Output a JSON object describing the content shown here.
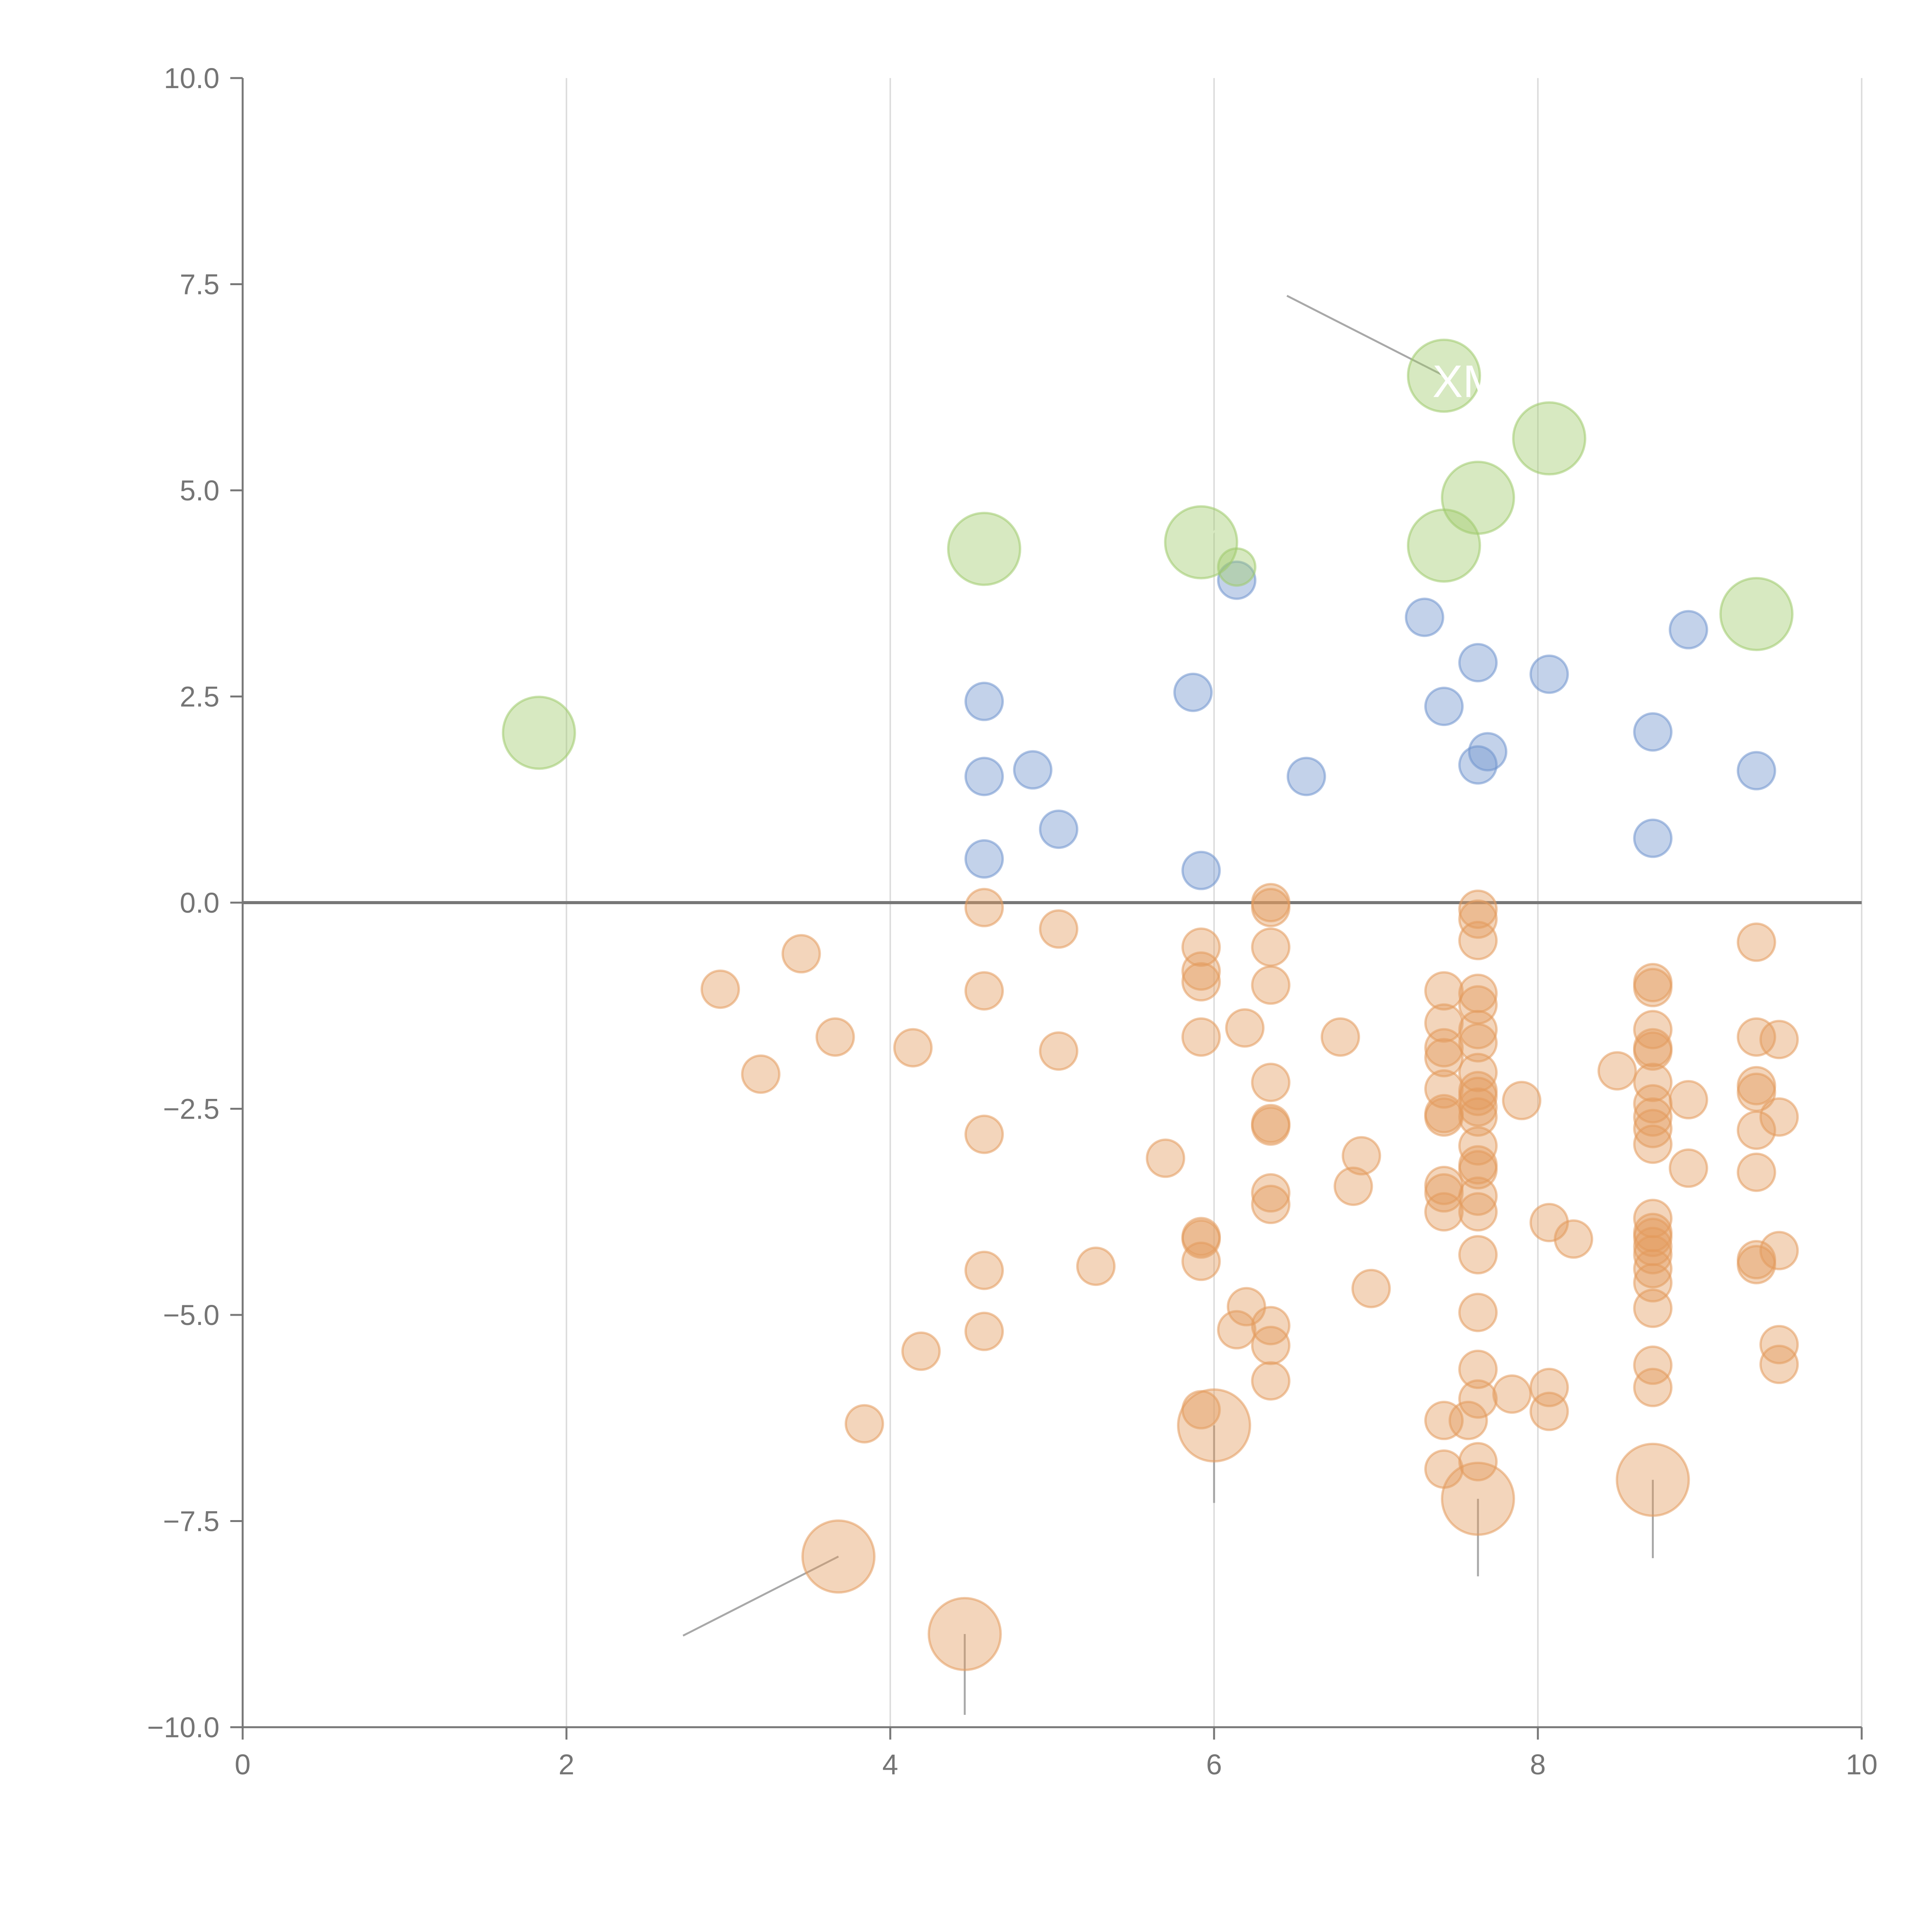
{
  "chart_data": {
    "type": "scatter",
    "title": "",
    "xlabel": "",
    "ylabel": "",
    "xlim": [
      0,
      10
    ],
    "ylim": [
      -10,
      10
    ],
    "x_ticks": [
      0,
      2,
      4,
      6,
      8,
      10
    ],
    "x_tick_labels": [
      "0",
      "2",
      "4",
      "6",
      "8",
      "10"
    ],
    "y_ticks": [
      10,
      7.5,
      5,
      2.5,
      0,
      -2.5,
      -5,
      -7.5,
      -10
    ],
    "y_tick_labels": [
      "10.0",
      "7.5",
      "5.0",
      "2.5",
      "0.0",
      "−2.5",
      "−5.0",
      "−7.5",
      "−10.0"
    ],
    "vertical_grid": true,
    "zero_line": true,
    "annotation_text": "XM",
    "colors": {
      "negative": "#e39a5c",
      "positive": "#6f94cd",
      "highlight": "#9fca6b",
      "axis": "#777777",
      "grid": "#dddddd",
      "tick_label": "#757575",
      "leader_dark": "#999999",
      "leader_light": "#ffffff"
    },
    "series": [
      {
        "name": "negative",
        "color": "#e39a5c",
        "size": "small",
        "points": [
          [
            2.95,
            -1.05
          ],
          [
            3.2,
            -2.08
          ],
          [
            3.45,
            -0.62
          ],
          [
            3.66,
            -1.63
          ],
          [
            3.84,
            -6.32
          ],
          [
            4.14,
            -1.76
          ],
          [
            4.19,
            -5.44
          ],
          [
            4.58,
            -0.06
          ],
          [
            4.58,
            -1.07
          ],
          [
            4.58,
            -2.81
          ],
          [
            4.58,
            -4.46
          ],
          [
            4.58,
            -5.2
          ],
          [
            5.04,
            -0.32
          ],
          [
            5.04,
            -1.8
          ],
          [
            5.27,
            -4.41
          ],
          [
            5.7,
            -3.1
          ],
          [
            5.92,
            -0.54
          ],
          [
            5.92,
            -0.83
          ],
          [
            5.92,
            -0.96
          ],
          [
            5.92,
            -1.63
          ],
          [
            5.92,
            -4.05
          ],
          [
            5.92,
            -4.08
          ],
          [
            5.92,
            -4.35
          ],
          [
            5.92,
            -6.15
          ],
          [
            6.14,
            -5.18
          ],
          [
            6.19,
            -1.52
          ],
          [
            6.2,
            -4.9
          ],
          [
            6.35,
            0.0
          ],
          [
            6.35,
            -0.06
          ],
          [
            6.35,
            -0.54
          ],
          [
            6.35,
            -1.0
          ],
          [
            6.35,
            -2.18
          ],
          [
            6.35,
            -2.68
          ],
          [
            6.35,
            -2.71
          ],
          [
            6.35,
            -3.52
          ],
          [
            6.35,
            -3.66
          ],
          [
            6.35,
            -5.13
          ],
          [
            6.35,
            -5.37
          ],
          [
            6.35,
            -5.8
          ],
          [
            6.78,
            -1.63
          ],
          [
            6.86,
            -3.44
          ],
          [
            6.91,
            -3.07
          ],
          [
            6.97,
            -4.68
          ],
          [
            7.42,
            -1.07
          ],
          [
            7.42,
            -1.46
          ],
          [
            7.42,
            -1.76
          ],
          [
            7.42,
            -1.88
          ],
          [
            7.42,
            -2.26
          ],
          [
            7.42,
            -2.56
          ],
          [
            7.42,
            -2.6
          ],
          [
            7.42,
            -3.43
          ],
          [
            7.42,
            -3.52
          ],
          [
            7.42,
            -3.75
          ],
          [
            7.42,
            -6.28
          ],
          [
            7.42,
            -6.87
          ],
          [
            7.63,
            -0.08
          ],
          [
            7.63,
            -0.2
          ],
          [
            7.63,
            -0.46
          ],
          [
            7.63,
            -1.1
          ],
          [
            7.63,
            -1.24
          ],
          [
            7.63,
            -1.54
          ],
          [
            7.63,
            -1.7
          ],
          [
            7.63,
            -2.06
          ],
          [
            7.63,
            -2.28
          ],
          [
            7.63,
            -2.35
          ],
          [
            7.63,
            -2.48
          ],
          [
            7.63,
            -2.6
          ],
          [
            7.63,
            -2.95
          ],
          [
            7.63,
            -3.18
          ],
          [
            7.63,
            -3.24
          ],
          [
            7.63,
            -3.56
          ],
          [
            7.63,
            -3.75
          ],
          [
            7.63,
            -4.27
          ],
          [
            7.63,
            -4.97
          ],
          [
            7.63,
            -5.66
          ],
          [
            7.63,
            -6.02
          ],
          [
            7.63,
            -6.78
          ],
          [
            7.57,
            -6.28
          ],
          [
            7.84,
            -5.96
          ],
          [
            7.9,
            -2.4
          ],
          [
            8.07,
            -3.88
          ],
          [
            8.07,
            -5.88
          ],
          [
            8.07,
            -6.17
          ],
          [
            8.22,
            -4.08
          ],
          [
            8.49,
            -2.04
          ],
          [
            8.71,
            -0.97
          ],
          [
            8.71,
            -1.03
          ],
          [
            8.71,
            -1.54
          ],
          [
            8.71,
            -1.76
          ],
          [
            8.71,
            -1.8
          ],
          [
            8.71,
            -2.18
          ],
          [
            8.71,
            -2.44
          ],
          [
            8.71,
            -2.6
          ],
          [
            8.71,
            -2.74
          ],
          [
            8.71,
            -2.93
          ],
          [
            8.71,
            -3.83
          ],
          [
            8.71,
            -4.0
          ],
          [
            8.71,
            -4.06
          ],
          [
            8.71,
            -4.17
          ],
          [
            8.71,
            -4.27
          ],
          [
            8.71,
            -4.44
          ],
          [
            8.71,
            -4.61
          ],
          [
            8.71,
            -4.92
          ],
          [
            8.71,
            -5.61
          ],
          [
            8.71,
            -5.88
          ],
          [
            8.93,
            -2.39
          ],
          [
            8.93,
            -3.22
          ],
          [
            9.35,
            -0.48
          ],
          [
            9.35,
            -1.63
          ],
          [
            9.35,
            -2.22
          ],
          [
            9.35,
            -2.3
          ],
          [
            9.35,
            -2.76
          ],
          [
            9.35,
            -3.27
          ],
          [
            9.35,
            -4.33
          ],
          [
            9.35,
            -4.39
          ],
          [
            9.49,
            -1.66
          ],
          [
            9.49,
            -2.6
          ],
          [
            9.49,
            -4.22
          ],
          [
            9.49,
            -5.36
          ],
          [
            9.49,
            -5.6
          ]
        ]
      },
      {
        "name": "negative-large",
        "color": "#e39a5c",
        "size": "large",
        "points": [
          [
            3.68,
            -7.93
          ],
          [
            4.46,
            -8.87
          ],
          [
            6.0,
            -6.34
          ],
          [
            7.63,
            -7.23
          ],
          [
            8.71,
            -7.0
          ]
        ]
      },
      {
        "name": "positive",
        "color": "#6f94cd",
        "size": "small",
        "points": [
          [
            4.58,
            2.44
          ],
          [
            4.58,
            1.53
          ],
          [
            4.58,
            0.53
          ],
          [
            4.88,
            1.61
          ],
          [
            5.04,
            0.89
          ],
          [
            5.87,
            2.55
          ],
          [
            5.92,
            0.39
          ],
          [
            6.14,
            3.91
          ],
          [
            6.57,
            1.53
          ],
          [
            7.3,
            3.46
          ],
          [
            7.42,
            2.38
          ],
          [
            7.63,
            2.91
          ],
          [
            7.63,
            1.67
          ],
          [
            7.69,
            1.83
          ],
          [
            8.07,
            2.77
          ],
          [
            8.71,
            2.07
          ],
          [
            8.71,
            0.78
          ],
          [
            8.93,
            3.31
          ],
          [
            9.35,
            1.6
          ]
        ]
      },
      {
        "name": "highlight",
        "color": "#9fca6b",
        "size": "large",
        "points": [
          [
            1.83,
            2.06
          ],
          [
            4.58,
            4.29
          ],
          [
            5.92,
            4.37
          ],
          [
            7.42,
            6.39
          ],
          [
            7.42,
            4.33
          ],
          [
            7.63,
            4.91
          ],
          [
            8.07,
            5.63
          ],
          [
            9.35,
            3.5
          ]
        ]
      },
      {
        "name": "highlight-small",
        "color": "#9fca6b",
        "size": "small",
        "points": [
          [
            6.14,
            4.07
          ]
        ]
      }
    ],
    "leaders": [
      {
        "from": [
          3.68,
          -7.93
        ],
        "to": [
          2.72,
          -8.89
        ],
        "tone": "dark"
      },
      {
        "from": [
          4.46,
          -8.87
        ],
        "to": [
          4.46,
          -9.85
        ],
        "tone": "dark"
      },
      {
        "from": [
          6.0,
          -6.34
        ],
        "to": [
          6.0,
          -7.28
        ],
        "tone": "dark"
      },
      {
        "from": [
          7.63,
          -7.23
        ],
        "to": [
          7.63,
          -8.17
        ],
        "tone": "dark"
      },
      {
        "from": [
          8.71,
          -7.0
        ],
        "to": [
          8.71,
          -7.95
        ],
        "tone": "dark"
      },
      {
        "from": [
          7.42,
          6.39
        ],
        "to": [
          6.45,
          7.36
        ],
        "tone": "dark"
      },
      {
        "from": [
          4.58,
          4.29
        ],
        "to": [
          4.72,
          4.73
        ],
        "tone": "light"
      },
      {
        "from": [
          5.92,
          4.37
        ],
        "to": [
          6.05,
          4.58
        ],
        "tone": "light"
      },
      {
        "from": [
          7.42,
          4.33
        ],
        "to": [
          7.57,
          4.05
        ],
        "tone": "light"
      },
      {
        "from": [
          7.63,
          4.91
        ],
        "to": [
          7.65,
          5.38
        ],
        "tone": "light"
      },
      {
        "from": [
          8.07,
          5.63
        ],
        "to": [
          8.2,
          5.83
        ],
        "tone": "light"
      },
      {
        "from": [
          9.35,
          3.5
        ],
        "to": [
          9.35,
          3.9
        ],
        "tone": "light"
      }
    ]
  }
}
